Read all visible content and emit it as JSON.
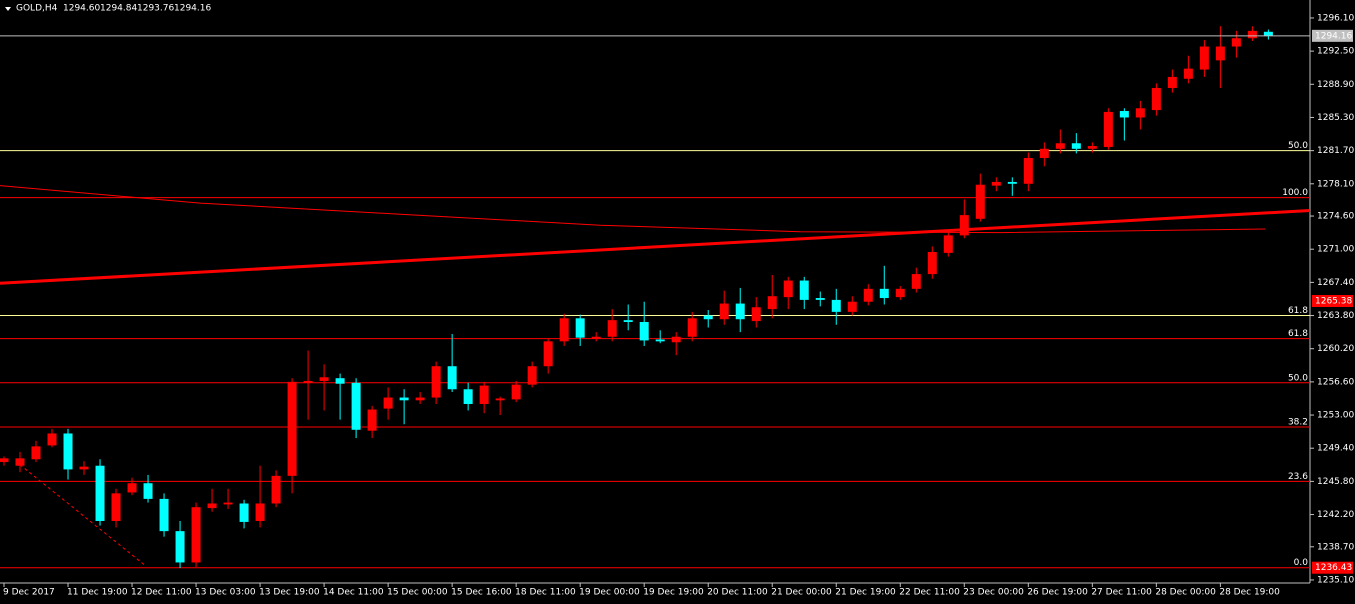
{
  "chart_data": {
    "type": "candlestick",
    "title": "GOLD,H4",
    "header_values": [
      {
        "value": 1294.6,
        "label": "1294.60"
      },
      {
        "value": 1294.84,
        "label": "1294.84"
      },
      {
        "value": 1293.76,
        "label": "1293.76"
      },
      {
        "value": 1294.16,
        "label": "1294.16"
      }
    ],
    "categories": [
      "9 Dec 2017",
      null,
      null,
      null,
      "11 Dec 19:00",
      null,
      null,
      null,
      "12 Dec 11:00",
      null,
      null,
      null,
      "13 Dec 03:00",
      null,
      null,
      null,
      "13 Dec 19:00",
      null,
      null,
      null,
      "14 Dec 11:00",
      null,
      null,
      null,
      "15 Dec 00:00",
      null,
      null,
      null,
      "15 Dec 16:00",
      null,
      null,
      null,
      "18 Dec 11:00",
      null,
      null,
      null,
      "19 Dec 00:00",
      null,
      null,
      null,
      "19 Dec 19:00",
      null,
      null,
      null,
      "20 Dec 11:00",
      null,
      null,
      null,
      "21 Dec 00:00",
      null,
      null,
      null,
      "21 Dec 19:00",
      null,
      null,
      null,
      "22 Dec 11:00",
      null,
      null,
      null,
      "23 Dec 00:00",
      null,
      null,
      null,
      "26 Dec 19:00",
      null,
      null,
      null,
      "27 Dec 11:00",
      null,
      null,
      null,
      "28 Dec 00:00",
      null,
      null,
      null,
      "28 Dec 19:00",
      null,
      null,
      null
    ],
    "open": [
      1247.9,
      1247.5,
      1248.2,
      1249.7,
      1251.0,
      1247.1,
      1247.5,
      1241.5,
      1244.6,
      1245.6,
      1243.9,
      1240.4,
      1237.0,
      1242.9,
      1243.3,
      1243.4,
      1241.5,
      1243.4,
      1246.4,
      1256.5,
      1256.7,
      1257.0,
      1256.5,
      1251.3,
      1253.7,
      1254.9,
      1254.6,
      1254.9,
      1258.3,
      1255.8,
      1254.2,
      1254.6,
      1254.7,
      1256.3,
      1258.3,
      1261.0,
      1263.5,
      1261.3,
      1261.5,
      1263.3,
      1263.1,
      1261.2,
      1260.9,
      1261.5,
      1263.8,
      1263.4,
      1265.1,
      1263.2,
      1264.5,
      1265.8,
      1267.6,
      1265.7,
      1265.5,
      1264.2,
      1265.3,
      1266.7,
      1265.8,
      1266.7,
      1268.3,
      1270.6,
      1272.5,
      1274.3,
      1277.9,
      1278.3,
      1278.1,
      1280.9,
      1281.9,
      1282.5,
      1281.9,
      1282.1,
      1286.0,
      1285.3,
      1286.1,
      1288.5,
      1289.5,
      1290.5,
      1291.5,
      1293.0,
      1293.9,
      1294.6
    ],
    "high": [
      1248.5,
      1249,
      1250.2,
      1251.5,
      1251.5,
      1248,
      1248.2,
      1245,
      1246.2,
      1246.5,
      1244.5,
      1241.5,
      1243.5,
      1245,
      1245,
      1243.8,
      1247.5,
      1247,
      1257,
      1260,
      1258.5,
      1257.5,
      1257,
      1254,
      1256,
      1255.8,
      1255.5,
      1258.8,
      1261.8,
      1256.5,
      1256.6,
      1255,
      1256.7,
      1258.8,
      1261.3,
      1264,
      1263.9,
      1262,
      1264.5,
      1265,
      1265.3,
      1262.2,
      1262,
      1264.2,
      1264.4,
      1266.5,
      1266.8,
      1265.8,
      1268.2,
      1268,
      1268,
      1266.4,
      1266.7,
      1265.9,
      1267.2,
      1269.2,
      1267,
      1269,
      1271.3,
      1272.8,
      1276.4,
      1279.2,
      1278.8,
      1278.8,
      1281.5,
      1282.6,
      1284,
      1283.6,
      1282.6,
      1286.3,
      1286.3,
      1287.1,
      1289,
      1290.5,
      1292,
      1293.7,
      1295.2,
      1294.7,
      1295.2,
      1294.84
    ],
    "low": [
      1247.5,
      1246.8,
      1247.9,
      1249.5,
      1246,
      1246.5,
      1241,
      1240.8,
      1244.3,
      1243.5,
      1239.8,
      1236.4,
      1236.5,
      1242.5,
      1242.8,
      1240.7,
      1240.8,
      1243,
      1244.5,
      1252.5,
      1253.5,
      1252.5,
      1250.5,
      1250.5,
      1252.5,
      1252,
      1254.2,
      1254.2,
      1255.5,
      1253.5,
      1253.2,
      1253,
      1254.4,
      1256,
      1257.5,
      1260.5,
      1260.5,
      1261,
      1261,
      1262.2,
      1260.5,
      1260.8,
      1259.5,
      1261,
      1262.5,
      1262.8,
      1262,
      1262.5,
      1263.5,
      1264.5,
      1264.5,
      1264.8,
      1262.8,
      1263.8,
      1264.9,
      1265,
      1265.5,
      1266.3,
      1267.8,
      1270.2,
      1272.2,
      1274,
      1277.3,
      1276.8,
      1277.3,
      1280,
      1281.4,
      1281.4,
      1281.5,
      1281.8,
      1282.8,
      1284,
      1285.5,
      1288,
      1289,
      1289.7,
      1288.5,
      1291.8,
      1293.6,
      1293.76
    ],
    "close": [
      1248.3,
      1248.3,
      1249.6,
      1251.0,
      1247.1,
      1247.4,
      1241.5,
      1244.5,
      1245.6,
      1243.9,
      1240.4,
      1237.0,
      1243.0,
      1243.4,
      1243.5,
      1241.4,
      1243.4,
      1246.4,
      1256.6,
      1256.7,
      1257.1,
      1256.4,
      1251.4,
      1253.6,
      1254.9,
      1254.6,
      1254.9,
      1258.3,
      1255.8,
      1254.2,
      1256.2,
      1254.8,
      1256.3,
      1258.3,
      1261.0,
      1263.5,
      1261.4,
      1261.5,
      1263.3,
      1263.1,
      1261.1,
      1261.0,
      1261.5,
      1263.5,
      1263.4,
      1265.1,
      1263.4,
      1264.7,
      1265.9,
      1267.6,
      1265.5,
      1265.5,
      1264.2,
      1265.3,
      1266.7,
      1265.7,
      1266.7,
      1268.3,
      1270.7,
      1272.5,
      1274.7,
      1278.0,
      1278.3,
      1278.1,
      1280.9,
      1281.9,
      1282.5,
      1281.9,
      1282.2,
      1285.9,
      1285.3,
      1286.3,
      1288.5,
      1289.7,
      1290.6,
      1293.0,
      1293.0,
      1293.9,
      1294.7,
      1294.16
    ],
    "up_color": "#ff0000",
    "down_color": "#00ffff",
    "xlim": [
      -0.25,
      81.6
    ],
    "ylim": [
      1234.77,
      1298.05
    ],
    "yticks": [
      {
        "value": 1296.1,
        "label": "1296.10"
      },
      {
        "value": 1292.5,
        "label": "1292.50"
      },
      {
        "value": 1288.9,
        "label": "1288.90"
      },
      {
        "value": 1285.3,
        "label": "1285.30"
      },
      {
        "value": 1281.7,
        "label": "1281.70"
      },
      {
        "value": 1278.1,
        "label": "1278.10"
      },
      {
        "value": 1274.6,
        "label": "1274.60"
      },
      {
        "value": 1271,
        "label": "1271.00"
      },
      {
        "value": 1267.4,
        "label": "1267.40"
      },
      {
        "value": 1263.8,
        "label": "1263.80"
      },
      {
        "value": 1260.2,
        "label": "1260.20"
      },
      {
        "value": 1256.6,
        "label": "1256.60"
      },
      {
        "value": 1253,
        "label": "1253.00"
      },
      {
        "value": 1249.4,
        "label": "1249.40"
      },
      {
        "value": 1245.8,
        "label": "1245.80"
      },
      {
        "value": 1242.2,
        "label": "1242.20"
      },
      {
        "value": 1238.7,
        "label": "1238.70"
      },
      {
        "value": 1235.1,
        "label": "1235.10"
      }
    ],
    "levels": [
      {
        "value": 1281.7,
        "label": "50.0",
        "color": "#ffff99"
      },
      {
        "value": 1263.8,
        "label": "61.8",
        "color": "#ffff99"
      },
      {
        "value": 1276.6,
        "label": "100.0",
        "color": "#ff0000"
      },
      {
        "value": 1261.3,
        "label": "61.8",
        "color": "#ff0000"
      },
      {
        "value": 1256.5,
        "label": "50.0",
        "color": "#ff0000"
      },
      {
        "value": 1251.7,
        "label": "38.2",
        "color": "#ff0000"
      },
      {
        "value": 1245.8,
        "label": "23.6",
        "color": "#ff0000"
      },
      {
        "value": 1236.43,
        "label": "0.0",
        "color": "#ff0000"
      }
    ],
    "price_labels": [
      {
        "value": 1294.16,
        "label": "1294.16",
        "color": "#c0c0c0"
      },
      {
        "value": 1265.38,
        "label": "1265.38",
        "color": "#ff0000"
      },
      {
        "value": 1236.43,
        "label": "1236.43",
        "color": "#ff0000"
      }
    ],
    "overlays": [
      {
        "color": "#ff0000",
        "width": 3,
        "dashed": false,
        "x": [
          -0.25,
          81.6
        ],
        "values": [
          1267.3,
          1275.2
        ]
      },
      {
        "color": "#ff0000",
        "width": 1,
        "dashed": false,
        "x": [
          -0.25,
          12.25,
          24.75,
          37.25,
          49.75,
          62.25,
          78.8
        ],
        "values": [
          1277.9,
          1276.0,
          1274.8,
          1273.6,
          1272.9,
          1272.8,
          1273.2
        ]
      },
      {
        "color": "#ff0000",
        "width": 1,
        "dashed": true,
        "x": [
          1,
          8.8
        ],
        "values": [
          1247.6,
          1236.7
        ]
      }
    ]
  }
}
